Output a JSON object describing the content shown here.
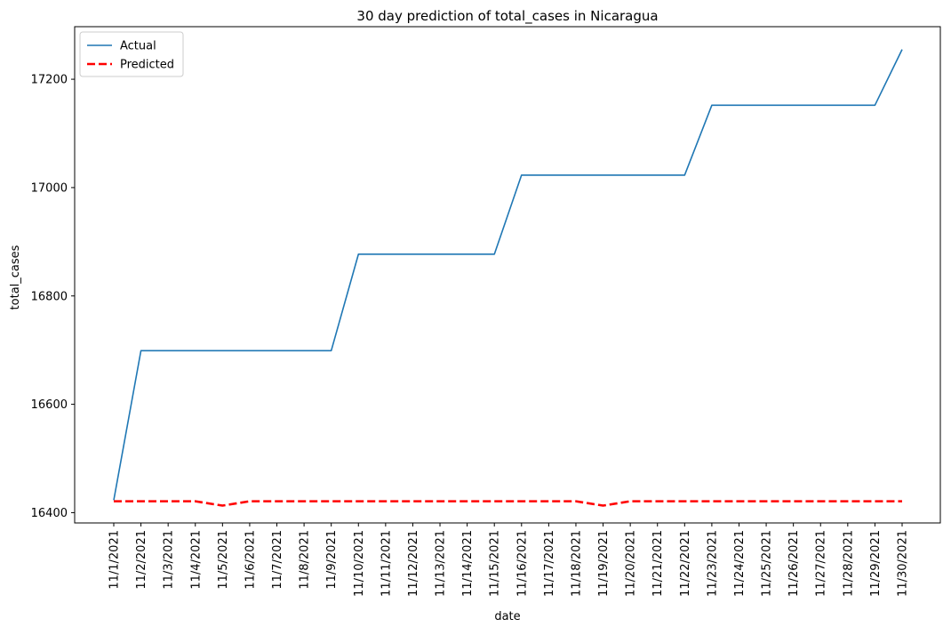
{
  "chart_data": {
    "type": "line",
    "title": "30 day prediction of total_cases in Nicaragua",
    "xlabel": "date",
    "ylabel": "total_cases",
    "categories": [
      "11/1/2021",
      "11/2/2021",
      "11/3/2021",
      "11/4/2021",
      "11/5/2021",
      "11/6/2021",
      "11/7/2021",
      "11/8/2021",
      "11/9/2021",
      "11/10/2021",
      "11/11/2021",
      "11/12/2021",
      "11/13/2021",
      "11/14/2021",
      "11/15/2021",
      "11/16/2021",
      "11/17/2021",
      "11/18/2021",
      "11/19/2021",
      "11/20/2021",
      "11/21/2021",
      "11/22/2021",
      "11/23/2021",
      "11/24/2021",
      "11/25/2021",
      "11/26/2021",
      "11/27/2021",
      "11/28/2021",
      "11/29/2021",
      "11/30/2021"
    ],
    "series": [
      {
        "name": "Actual",
        "color": "#1f77b4",
        "style": "solid",
        "values": [
          16423,
          16699,
          16699,
          16699,
          16699,
          16699,
          16699,
          16699,
          16699,
          16877,
          16877,
          16877,
          16877,
          16877,
          16877,
          17023,
          17023,
          17023,
          17023,
          17023,
          17023,
          17023,
          17152,
          17152,
          17152,
          17152,
          17152,
          17152,
          17152,
          17255
        ]
      },
      {
        "name": "Predicted",
        "color": "#ff0000",
        "style": "dashed",
        "values": [
          16421,
          16421,
          16421,
          16421,
          16413,
          16421,
          16421,
          16421,
          16421,
          16421,
          16421,
          16421,
          16421,
          16421,
          16421,
          16421,
          16421,
          16421,
          16413,
          16421,
          16421,
          16421,
          16421,
          16421,
          16421,
          16421,
          16421,
          16421,
          16421,
          16421
        ]
      }
    ],
    "ylim": [
      16381,
      17297
    ],
    "yticks": [
      16400,
      16600,
      16800,
      17000,
      17200
    ],
    "grid": false,
    "legend_position": "top-left"
  }
}
